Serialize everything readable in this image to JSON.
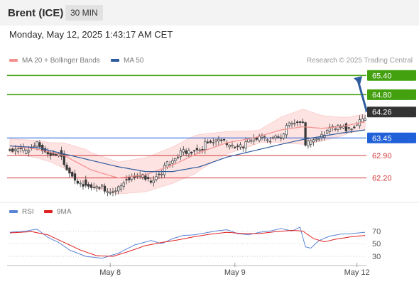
{
  "header": {
    "instrument": "Brent (ICE)",
    "timeframe": "30 MIN"
  },
  "datetime": "Monday, May 12, 2025 1:43:17 AM CET",
  "legend": [
    {
      "label": "MA 20 + Bollinger Bands",
      "color": "#f4908e"
    },
    {
      "label": "MA 50",
      "color": "#2f5c9e"
    }
  ],
  "credit": "Research © 2025 Trading Central",
  "rsi_legend": [
    {
      "label": "RSI",
      "color": "#5b84d6"
    },
    {
      "label": "9MA",
      "color": "#e02020"
    }
  ],
  "colors": {
    "resistance": "#43a00f",
    "support": "#d23a3a",
    "pivot": "#2060d8",
    "last": "#333333",
    "arrow": "#2f5c9e",
    "bollinger_fill": "#fde0df",
    "candle_up": "#3a3a3a",
    "candle_down": "#3a3a3a"
  },
  "chart_data": [
    {
      "type": "candlestick",
      "title": "Brent (ICE) 30 MIN",
      "ylim": [
        61.55,
        65.65
      ],
      "x_ticks": [
        {
          "label": "May 8",
          "index": 37
        },
        {
          "label": "May 9",
          "index": 83
        },
        {
          "label": "May 12",
          "index": 128
        }
      ],
      "levels": [
        {
          "value": 65.4,
          "label": "65.40",
          "kind": "resistance"
        },
        {
          "value": 64.8,
          "label": "64.80",
          "kind": "resistance"
        },
        {
          "value": 64.26,
          "label": "64.26",
          "kind": "last"
        },
        {
          "value": 63.45,
          "label": "63.45",
          "kind": "pivot"
        },
        {
          "value": 62.9,
          "label": "62.90",
          "kind": "support"
        },
        {
          "value": 62.2,
          "label": "62.20",
          "kind": "support"
        }
      ],
      "arrow": {
        "direction": "up",
        "from_value": 64.3,
        "to_value": 65.38
      },
      "close_anchors": [
        [
          0,
          63.05
        ],
        [
          4,
          63.1
        ],
        [
          8,
          63.3
        ],
        [
          10,
          63.4
        ],
        [
          12,
          63.2
        ],
        [
          14,
          62.95
        ],
        [
          16,
          62.9
        ],
        [
          18,
          63.0
        ],
        [
          20,
          62.75
        ],
        [
          22,
          62.55
        ],
        [
          24,
          62.3
        ],
        [
          26,
          62.15
        ],
        [
          28,
          62.0
        ],
        [
          31,
          61.85
        ],
        [
          34,
          61.95
        ],
        [
          37,
          61.9
        ],
        [
          40,
          62.05
        ],
        [
          44,
          62.2
        ],
        [
          48,
          62.25
        ],
        [
          50,
          62.35
        ],
        [
          52,
          62.2
        ],
        [
          54,
          62.45
        ],
        [
          56,
          62.5
        ],
        [
          58,
          62.65
        ],
        [
          60,
          62.7
        ],
        [
          62,
          62.9
        ],
        [
          64,
          63.1
        ],
        [
          68,
          63.2
        ],
        [
          72,
          63.3
        ],
        [
          76,
          63.4
        ],
        [
          80,
          63.35
        ],
        [
          84,
          63.3
        ],
        [
          88,
          63.35
        ],
        [
          92,
          63.45
        ],
        [
          96,
          63.55
        ],
        [
          100,
          63.65
        ],
        [
          103,
          63.85
        ],
        [
          106,
          63.95
        ],
        [
          108,
          63.9
        ],
        [
          109,
          63.4
        ],
        [
          112,
          63.5
        ],
        [
          115,
          63.65
        ],
        [
          118,
          63.75
        ],
        [
          121,
          63.8
        ],
        [
          124,
          63.85
        ],
        [
          127,
          63.95
        ],
        [
          129,
          64.1
        ],
        [
          131,
          64.2
        ]
      ],
      "ma20_anchors": [
        [
          0,
          63.2
        ],
        [
          10,
          63.1
        ],
        [
          20,
          62.9
        ],
        [
          30,
          62.45
        ],
        [
          40,
          62.2
        ],
        [
          50,
          62.3
        ],
        [
          60,
          62.6
        ],
        [
          70,
          63.0
        ],
        [
          80,
          63.3
        ],
        [
          90,
          63.45
        ],
        [
          100,
          63.7
        ],
        [
          108,
          63.8
        ],
        [
          115,
          63.75
        ],
        [
          122,
          63.8
        ],
        [
          131,
          63.95
        ]
      ],
      "ma50_anchors": [
        [
          0,
          63.2
        ],
        [
          10,
          63.15
        ],
        [
          20,
          62.95
        ],
        [
          30,
          62.75
        ],
        [
          40,
          62.55
        ],
        [
          50,
          62.4
        ],
        [
          60,
          62.4
        ],
        [
          70,
          62.55
        ],
        [
          80,
          62.85
        ],
        [
          90,
          63.05
        ],
        [
          100,
          63.25
        ],
        [
          108,
          63.4
        ],
        [
          115,
          63.5
        ],
        [
          122,
          63.6
        ],
        [
          131,
          63.7
        ]
      ],
      "bollinger_width_anchors": [
        [
          0,
          0.22
        ],
        [
          15,
          0.3
        ],
        [
          28,
          0.55
        ],
        [
          40,
          0.5
        ],
        [
          55,
          0.55
        ],
        [
          68,
          0.6
        ],
        [
          80,
          0.35
        ],
        [
          92,
          0.2
        ],
        [
          100,
          0.4
        ],
        [
          108,
          0.55
        ],
        [
          115,
          0.4
        ],
        [
          125,
          0.25
        ],
        [
          131,
          0.25
        ]
      ]
    },
    {
      "type": "line",
      "title": "RSI",
      "ylim": [
        20,
        85
      ],
      "y_ticks": [
        70,
        50,
        30
      ],
      "series": [
        {
          "name": "RSI",
          "color": "#5b84d6",
          "anchors": [
            [
              0,
              68
            ],
            [
              6,
              70
            ],
            [
              10,
              73
            ],
            [
              14,
              60
            ],
            [
              18,
              52
            ],
            [
              22,
              40
            ],
            [
              28,
              30
            ],
            [
              34,
              27
            ],
            [
              40,
              35
            ],
            [
              46,
              48
            ],
            [
              52,
              55
            ],
            [
              56,
              50
            ],
            [
              60,
              58
            ],
            [
              64,
              63
            ],
            [
              68,
              64
            ],
            [
              72,
              67
            ],
            [
              76,
              70
            ],
            [
              80,
              72
            ],
            [
              84,
              66
            ],
            [
              88,
              64
            ],
            [
              92,
              68
            ],
            [
              96,
              70
            ],
            [
              100,
              74
            ],
            [
              104,
              70
            ],
            [
              107,
              76
            ],
            [
              109,
              45
            ],
            [
              111,
              43
            ],
            [
              114,
              55
            ],
            [
              118,
              62
            ],
            [
              122,
              65
            ],
            [
              126,
              66
            ],
            [
              131,
              68
            ]
          ]
        },
        {
          "name": "9MA",
          "color": "#e02020",
          "anchors": [
            [
              0,
              67
            ],
            [
              8,
              69
            ],
            [
              14,
              64
            ],
            [
              20,
              52
            ],
            [
              26,
              40
            ],
            [
              32,
              31
            ],
            [
              38,
              30
            ],
            [
              44,
              38
            ],
            [
              50,
              47
            ],
            [
              56,
              52
            ],
            [
              62,
              56
            ],
            [
              68,
              61
            ],
            [
              74,
              65
            ],
            [
              80,
              68
            ],
            [
              86,
              66
            ],
            [
              92,
              66
            ],
            [
              98,
              69
            ],
            [
              104,
              71
            ],
            [
              108,
              70
            ],
            [
              112,
              58
            ],
            [
              116,
              53
            ],
            [
              120,
              57
            ],
            [
              126,
              61
            ],
            [
              131,
              63
            ]
          ]
        }
      ]
    }
  ]
}
